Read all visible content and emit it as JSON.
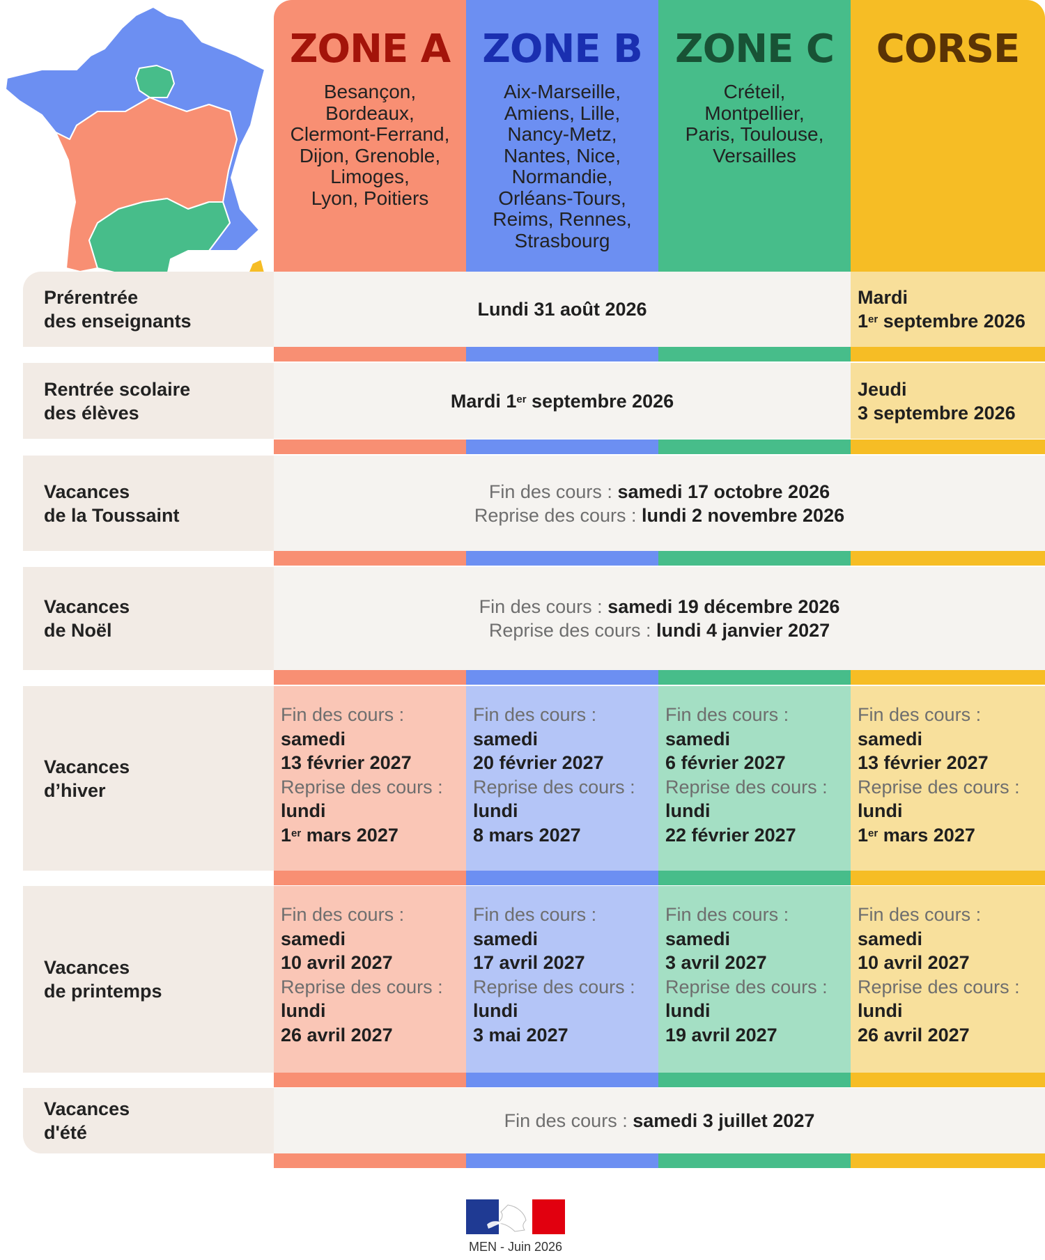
{
  "zones": [
    {
      "title": "ZONE A",
      "academies": [
        "Besançon,",
        "Bordeaux,",
        "Clermont-Ferrand,",
        "Dijon, Grenoble,",
        "Limoges,",
        "Lyon, Poitiers"
      ]
    },
    {
      "title": "ZONE B",
      "academies": [
        "Aix-Marseille,",
        "Amiens, Lille,",
        "Nancy-Metz,",
        "Nantes, Nice,",
        "Normandie,",
        "Orléans-Tours,",
        "Reims, Rennes,",
        "Strasbourg"
      ]
    },
    {
      "title": "ZONE C",
      "academies": [
        "Créteil,",
        "Montpellier,",
        "Paris, Toulouse,",
        "Versailles"
      ]
    },
    {
      "title": "CORSE",
      "academies": []
    }
  ],
  "colors": {
    "zone_a": "#f88f73",
    "zone_b": "#6c8ff2",
    "zone_c": "#47bd8a",
    "corse": "#f6bd25"
  },
  "labels": {
    "fin": "Fin des cours :",
    "reprise": "Reprise des cours :",
    "samedi": "samedi",
    "lundi": "lundi",
    "sup_er": "er"
  },
  "rows": {
    "prerentree": {
      "label": [
        "Prérentrée",
        "des enseignants"
      ],
      "common": "Lundi 31 août 2026",
      "corse_line1": "Mardi",
      "corse_line2_pre": "1",
      "corse_line2_post": " septembre 2026"
    },
    "rentree": {
      "label": [
        "Rentrée scolaire",
        "des élèves"
      ],
      "common_pre": "Mardi 1",
      "common_post": " septembre 2026",
      "corse_line1": "Jeudi",
      "corse_line2": "3 septembre 2026"
    },
    "toussaint": {
      "label": [
        "Vacances",
        "de la Toussaint"
      ],
      "fin": "samedi 17 octobre 2026",
      "reprise": "lundi 2 novembre 2026"
    },
    "noel": {
      "label": [
        "Vacances",
        "de Noël"
      ],
      "fin": "samedi 19 décembre 2026",
      "reprise": "lundi 4 janvier 2027"
    },
    "hiver": {
      "label": [
        "Vacances",
        "d’hiver"
      ],
      "zones": [
        {
          "fin_date": "13 février 2027",
          "reprise_date": "mars 2027",
          "reprise_sup": "1"
        },
        {
          "fin_date": "20 février 2027",
          "reprise_date": "8 mars 2027"
        },
        {
          "fin_date": "6 février 2027",
          "reprise_date": "22 février 2027"
        },
        {
          "fin_date": "13 février 2027",
          "reprise_date": "mars 2027",
          "reprise_sup": "1"
        }
      ]
    },
    "printemps": {
      "label": [
        "Vacances",
        "de printemps"
      ],
      "zones": [
        {
          "fin_date": "10 avril 2027",
          "reprise_date": "26 avril 2027"
        },
        {
          "fin_date": "17 avril 2027",
          "reprise_date": "3 mai 2027"
        },
        {
          "fin_date": "3 avril 2027",
          "reprise_date": "19 avril 2027"
        },
        {
          "fin_date": "10 avril 2027",
          "reprise_date": "26 avril 2027"
        }
      ]
    },
    "ete": {
      "label": [
        "Vacances",
        "d'été"
      ],
      "fin": "samedi 3 juillet 2027"
    }
  },
  "footer": "MEN - Juin 2026"
}
